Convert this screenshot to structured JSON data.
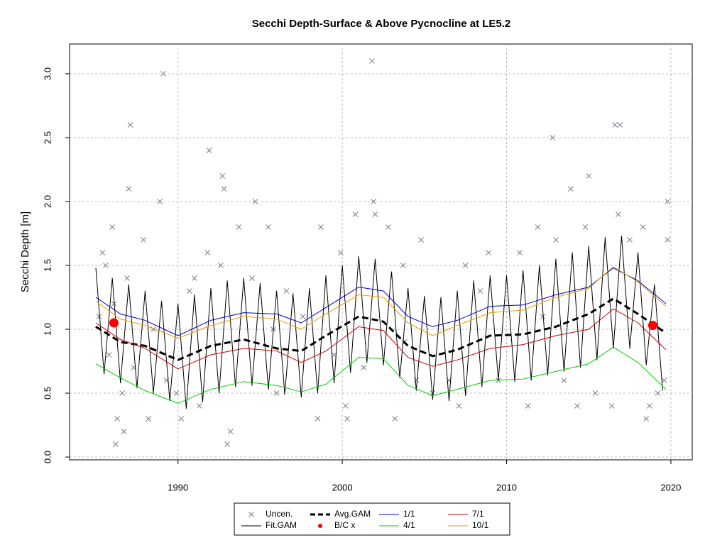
{
  "chart_data": {
    "type": "line",
    "title": "Secchi Depth-Surface & Above Pycnocline at LE5.2",
    "y_label": "Secchi Depth [m]",
    "xlim": [
      1983.4,
      2021.3
    ],
    "ylim": [
      -0.022,
      3.233
    ],
    "xticks": [
      1990,
      2000,
      2010,
      2020
    ],
    "yticks": [
      {
        "value": 0,
        "label": "0.0"
      },
      0.5,
      {
        "value": 1,
        "label": "1.0"
      },
      1.5,
      {
        "value": 2,
        "label": "2.0"
      },
      2.5,
      {
        "value": 3,
        "label": "3.0"
      }
    ],
    "grid": true,
    "legend": "bottom",
    "series": [
      {
        "name": "Uncen.",
        "color": "#7a7f8a",
        "style": "cross",
        "x": [
          1985.2,
          1985.4,
          1985.6,
          1985.8,
          1986,
          1986.1,
          1986.2,
          1986.3,
          1986.6,
          1986.7,
          1986.9,
          1987.1,
          1987,
          1987.3,
          1987.9,
          1988.2,
          1988.5,
          1988.9,
          1989.1,
          1989.3,
          1990.2,
          1990.7,
          1991,
          1991.3,
          1991.8,
          1991.9,
          1992.7,
          1992.8,
          1992.6,
          1993,
          1993.2,
          1993.7,
          1994.5,
          1994.7,
          1995.5,
          1996,
          1996.6,
          1997.6,
          1998.5,
          1998.7,
          1999.5,
          1999.9,
          2000.2,
          2000.3,
          2000.8,
          2001.3,
          2001.8,
          2001.9,
          2002,
          2002.8,
          2003.2,
          2003.7,
          2004.5,
          2004.8,
          2005.5,
          2006.5,
          2007.1,
          2007.5,
          2008.9,
          2009.5,
          2010.8,
          2011.3,
          2011.9,
          2012.8,
          2013,
          2013.5,
          2013.9,
          2014.3,
          2014.8,
          2015,
          2015.4,
          2016.6,
          2016.9,
          2016.8,
          2016.4,
          2017.5,
          2018.3,
          2018.5,
          2018.7,
          2019.2,
          2019.8,
          2019.8,
          2019.6,
          1989.9,
          1995.8,
          2003.8,
          2008.4,
          2012.2
        ],
        "values": [
          1.1,
          1.6,
          1.5,
          0.8,
          1.8,
          1.2,
          0.1,
          0.3,
          0.5,
          0.2,
          1.4,
          2.6,
          2.1,
          0.7,
          1.7,
          0.3,
          1.0,
          2.0,
          3.0,
          0.6,
          0.3,
          1.3,
          1.4,
          0.4,
          1.6,
          2.4,
          2.2,
          2.1,
          1.5,
          0.1,
          0.2,
          1.8,
          1.4,
          2.0,
          1.8,
          0.5,
          1.3,
          1.1,
          0.3,
          1.8,
          0.8,
          1.6,
          0.4,
          0.3,
          1.9,
          0.7,
          3.1,
          2.0,
          1.9,
          1.8,
          0.3,
          1.5,
          0.6,
          1.7,
          0.5,
          0.6,
          0.4,
          1.5,
          1.6,
          0.6,
          1.6,
          0.4,
          1.8,
          2.5,
          1.7,
          0.6,
          2.1,
          0.4,
          1.8,
          2.2,
          0.5,
          2.6,
          2.6,
          1.9,
          0.4,
          1.7,
          1.8,
          0.3,
          0.4,
          0.5,
          2.0,
          1.7,
          0.6,
          0.5,
          1.0,
          0.9,
          1.3,
          1.1
        ]
      },
      {
        "name": "Fit.GAM",
        "color": "#000000",
        "style": "solid",
        "x": [
          1985,
          1985.5,
          1986,
          1986.5,
          1987,
          1987.5,
          1988,
          1988.5,
          1989,
          1989.5,
          1990,
          1990.5,
          1991,
          1991.5,
          1992,
          1992.5,
          1993,
          1993.5,
          1994,
          1994.5,
          1995,
          1995.5,
          1996,
          1996.5,
          1997,
          1997.5,
          1998,
          1998.5,
          1999,
          1999.5,
          2000,
          2000.5,
          2001,
          2001.5,
          2002,
          2002.5,
          2003,
          2003.5,
          2004,
          2004.5,
          2005,
          2005.5,
          2006,
          2006.5,
          2007,
          2007.5,
          2008,
          2008.5,
          2009,
          2009.5,
          2010,
          2010.5,
          2011,
          2011.5,
          2012,
          2012.5,
          2013,
          2013.5,
          2014,
          2014.5,
          2015,
          2015.5,
          2016,
          2016.5,
          2017,
          2017.5,
          2018,
          2018.5,
          2019,
          2019.5
        ],
        "values": [
          1.48,
          0.65,
          1.4,
          0.58,
          1.35,
          0.54,
          1.3,
          0.5,
          1.22,
          0.44,
          1.2,
          0.38,
          1.27,
          0.43,
          1.32,
          0.5,
          1.38,
          0.55,
          1.4,
          0.56,
          1.36,
          0.53,
          1.3,
          0.49,
          1.28,
          0.47,
          1.32,
          0.5,
          1.42,
          0.58,
          1.5,
          0.66,
          1.57,
          0.74,
          1.55,
          0.72,
          1.45,
          0.62,
          1.32,
          0.52,
          1.26,
          0.45,
          1.25,
          0.44,
          1.3,
          0.48,
          1.38,
          0.55,
          1.42,
          0.6,
          1.42,
          0.59,
          1.46,
          0.6,
          1.5,
          0.64,
          1.55,
          0.67,
          1.6,
          0.7,
          1.65,
          0.76,
          1.72,
          0.85,
          1.73,
          0.85,
          1.6,
          0.72,
          1.35,
          0.52
        ]
      },
      {
        "name": "Avg.GAM",
        "color": "#000000",
        "style": "dashed",
        "x": [
          1985,
          1986.5,
          1988,
          1990,
          1992,
          1994,
          1996,
          1997.5,
          1999,
          2001,
          2002.5,
          2004,
          2005.5,
          2007,
          2009,
          2011,
          2013,
          2015,
          2016.5,
          2018,
          2019.7
        ],
        "values": [
          1.02,
          0.9,
          0.87,
          0.76,
          0.87,
          0.92,
          0.85,
          0.83,
          0.95,
          1.1,
          1.06,
          0.87,
          0.79,
          0.84,
          0.95,
          0.96,
          1.02,
          1.12,
          1.24,
          1.12,
          0.97
        ]
      },
      {
        "name": "B/C x",
        "color": "#ff0000",
        "style": "dot",
        "x": [
          1986.1,
          2018.9
        ],
        "values": [
          1.05,
          1.03
        ]
      },
      {
        "name": "1/1",
        "color": "#0000cc",
        "style": "solid",
        "x": [
          1985,
          1986.5,
          1988,
          1990,
          1992,
          1994,
          1996,
          1997.5,
          1999,
          2001,
          2002.5,
          2004,
          2005.5,
          2007,
          2009,
          2011,
          2013,
          2015,
          2016.5,
          2018,
          2019.7
        ],
        "values": [
          1.25,
          1.12,
          1.07,
          0.95,
          1.07,
          1.13,
          1.12,
          1.05,
          1.17,
          1.33,
          1.3,
          1.1,
          1.02,
          1.07,
          1.18,
          1.19,
          1.27,
          1.33,
          1.48,
          1.38,
          1.2
        ]
      },
      {
        "name": "4/1",
        "color": "#00cc00",
        "style": "solid",
        "x": [
          1985,
          1986.5,
          1988,
          1990,
          1992,
          1994,
          1996,
          1997.5,
          1999,
          2001,
          2002.5,
          2004,
          2005.5,
          2007,
          2009,
          2011,
          2013,
          2015,
          2016.5,
          2018,
          2019.7
        ],
        "values": [
          0.73,
          0.62,
          0.52,
          0.42,
          0.53,
          0.59,
          0.56,
          0.51,
          0.57,
          0.78,
          0.77,
          0.56,
          0.48,
          0.53,
          0.6,
          0.61,
          0.67,
          0.73,
          0.86,
          0.74,
          0.53
        ]
      },
      {
        "name": "7/1",
        "color": "#cc0000",
        "style": "solid",
        "x": [
          1985,
          1986.5,
          1988,
          1990,
          1992,
          1994,
          1996,
          1997.5,
          1999,
          2001,
          2002.5,
          2004,
          2005.5,
          2007,
          2009,
          2011,
          2013,
          2015,
          2016.5,
          2018,
          2019.7
        ],
        "values": [
          1.05,
          0.92,
          0.85,
          0.69,
          0.8,
          0.85,
          0.83,
          0.74,
          0.83,
          1.02,
          0.99,
          0.78,
          0.71,
          0.76,
          0.85,
          0.88,
          0.95,
          1.0,
          1.16,
          1.05,
          0.84
        ]
      },
      {
        "name": "10/1",
        "color": "#e69f00",
        "style": "solid",
        "x": [
          1985,
          1986.5,
          1988,
          1990,
          1992,
          1994,
          1996,
          1997.5,
          1999,
          2001,
          2002.5,
          2004,
          2005.5,
          2007,
          2009,
          2011,
          2013,
          2015,
          2016.5,
          2018,
          2019.7
        ],
        "values": [
          1.22,
          1.08,
          1.03,
          0.93,
          1.03,
          1.1,
          1.08,
          1.0,
          1.12,
          1.27,
          1.25,
          1.05,
          0.95,
          1.03,
          1.13,
          1.15,
          1.25,
          1.32,
          1.49,
          1.37,
          1.18
        ]
      }
    ]
  }
}
